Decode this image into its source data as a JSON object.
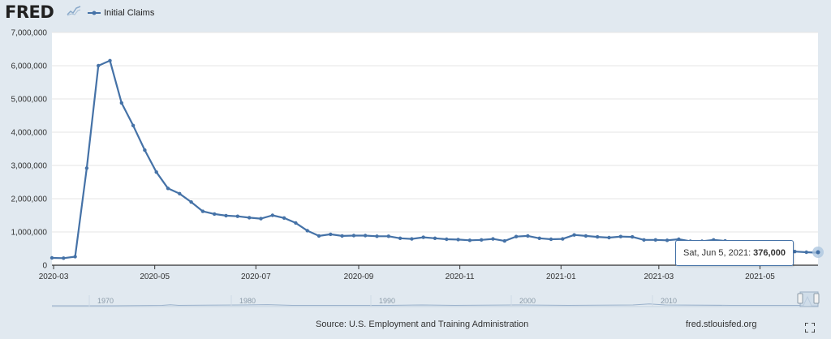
{
  "header": {
    "logo_text": "FRED",
    "legend_label": "Initial Claims"
  },
  "tooltip": {
    "date_label": "Sat, Jun 5, 2021:",
    "value_label": "376,000"
  },
  "footer": {
    "source": "Source: U.S. Employment and Training Administration",
    "site": "fred.stlouisfed.org"
  },
  "colors": {
    "series": "#4572a7",
    "plot_bg": "#ffffff",
    "page_bg": "#e1e9f0"
  },
  "icons": [
    "fred-sparkline-logo-icon",
    "fullscreen-icon"
  ],
  "chart_data": {
    "type": "line",
    "title": "",
    "xlabel": "",
    "ylabel": "",
    "ylim": [
      0,
      7000000
    ],
    "y_ticks": [
      "0",
      "1,000,000",
      "2,000,000",
      "3,000,000",
      "4,000,000",
      "5,000,000",
      "6,000,000",
      "7,000,000"
    ],
    "x_ticks": [
      "2020-03",
      "2020-05",
      "2020-07",
      "2020-09",
      "2020-11",
      "2021-01",
      "2021-03",
      "2021-05"
    ],
    "grid": "horizontal",
    "legend_position": "top-left",
    "series": [
      {
        "name": "Initial Claims",
        "x": [
          "2020-02-29",
          "2020-03-07",
          "2020-03-14",
          "2020-03-21",
          "2020-03-28",
          "2020-04-04",
          "2020-04-11",
          "2020-04-18",
          "2020-04-25",
          "2020-05-02",
          "2020-05-09",
          "2020-05-16",
          "2020-05-23",
          "2020-05-30",
          "2020-06-06",
          "2020-06-13",
          "2020-06-20",
          "2020-06-27",
          "2020-07-04",
          "2020-07-11",
          "2020-07-18",
          "2020-07-25",
          "2020-08-01",
          "2020-08-08",
          "2020-08-15",
          "2020-08-22",
          "2020-08-29",
          "2020-09-05",
          "2020-09-12",
          "2020-09-19",
          "2020-09-26",
          "2020-10-03",
          "2020-10-10",
          "2020-10-17",
          "2020-10-24",
          "2020-10-31",
          "2020-11-07",
          "2020-11-14",
          "2020-11-21",
          "2020-11-28",
          "2020-12-05",
          "2020-12-12",
          "2020-12-19",
          "2020-12-26",
          "2021-01-02",
          "2021-01-09",
          "2021-01-16",
          "2021-01-23",
          "2021-01-30",
          "2021-02-06",
          "2021-02-13",
          "2021-02-20",
          "2021-02-27",
          "2021-03-06",
          "2021-03-13",
          "2021-03-20",
          "2021-03-27",
          "2021-04-03",
          "2021-04-10",
          "2021-04-17",
          "2021-04-24",
          "2021-05-01",
          "2021-05-08",
          "2021-05-15",
          "2021-05-22",
          "2021-05-29",
          "2021-06-05"
        ],
        "values": [
          219000,
          213000,
          256000,
          2920000,
          6000000,
          6150000,
          4880000,
          4200000,
          3460000,
          2800000,
          2310000,
          2150000,
          1900000,
          1620000,
          1540000,
          1490000,
          1470000,
          1430000,
          1400000,
          1500000,
          1420000,
          1270000,
          1040000,
          880000,
          930000,
          880000,
          890000,
          890000,
          870000,
          870000,
          810000,
          790000,
          840000,
          810000,
          780000,
          770000,
          750000,
          760000,
          790000,
          730000,
          860000,
          880000,
          810000,
          780000,
          790000,
          910000,
          880000,
          850000,
          830000,
          860000,
          850000,
          760000,
          760000,
          750000,
          780000,
          720000,
          720000,
          760000,
          730000,
          620000,
          610000,
          510000,
          470000,
          440000,
          410000,
          390000,
          376000
        ]
      }
    ],
    "navigator_labels": [
      "1970",
      "1980",
      "1990",
      "2000",
      "2010"
    ]
  }
}
